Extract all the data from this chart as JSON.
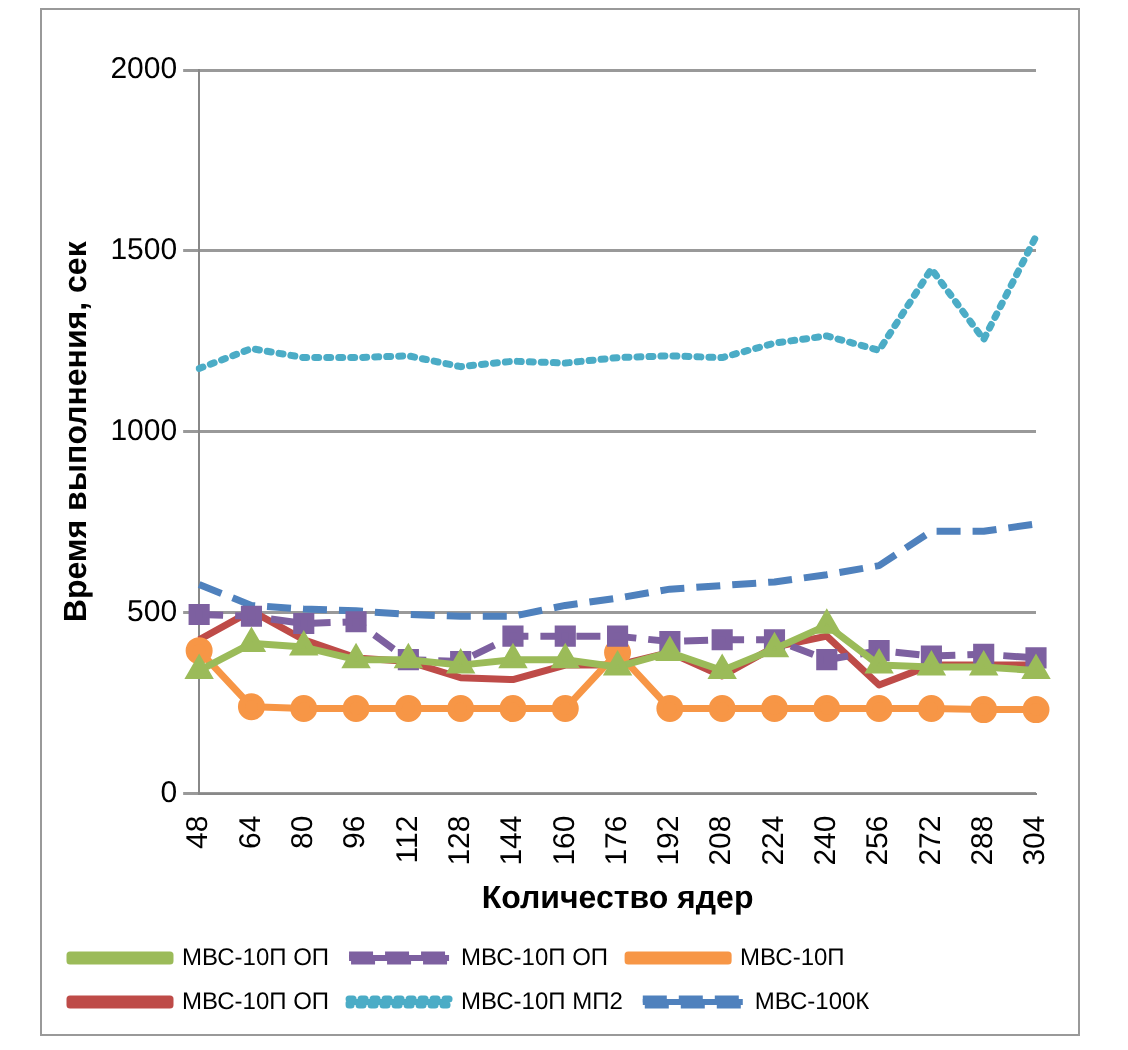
{
  "chart_data": {
    "type": "line",
    "xlabel": "Количество ядер",
    "ylabel": "Время выполнения, сек",
    "categories": [
      "48",
      "64",
      "80",
      "96",
      "112",
      "128",
      "144",
      "160",
      "176",
      "192",
      "208",
      "224",
      "240",
      "256",
      "272",
      "288",
      "304"
    ],
    "ylim": [
      0,
      2000
    ],
    "yticks": [
      0,
      500,
      1000,
      1500,
      2000
    ],
    "grid": "y",
    "legend": "bottom",
    "series": [
      {
        "name": "МВС-10П ОП",
        "color": "#be4b48",
        "marker": "none",
        "line_style": "solid",
        "values": [
          425,
          505,
          425,
          375,
          365,
          320,
          315,
          355,
          355,
          390,
          325,
          405,
          435,
          300,
          355,
          355,
          355
        ]
      },
      {
        "name": "МВС-10П ОП",
        "color": "#9bbb59",
        "marker": "triangle",
        "line_style": "solid",
        "values": [
          340,
          415,
          405,
          370,
          370,
          355,
          370,
          370,
          350,
          390,
          340,
          400,
          465,
          355,
          350,
          350,
          340
        ]
      },
      {
        "name": "МВС-10П ОП",
        "color": "#7d60a0",
        "marker": "square",
        "line_style": "dashed",
        "values": [
          495,
          490,
          470,
          475,
          370,
          365,
          435,
          435,
          435,
          420,
          425,
          425,
          370,
          395,
          380,
          385,
          375
        ]
      },
      {
        "name": "МВС-10П МП2",
        "color": "#4bacc6",
        "marker": "none",
        "line_style": "dotted",
        "values": [
          1175,
          1230,
          1205,
          1205,
          1210,
          1180,
          1195,
          1190,
          1205,
          1210,
          1205,
          1245,
          1265,
          1225,
          1450,
          1255,
          1540
        ]
      },
      {
        "name": "МВС-10П",
        "color": "#f79646",
        "marker": "circle",
        "line_style": "solid",
        "values": [
          395,
          240,
          235,
          235,
          235,
          235,
          235,
          235,
          390,
          235,
          235,
          235,
          235,
          235,
          235,
          232,
          232
        ]
      },
      {
        "name": "МВС-100К",
        "color": "#4f81bd",
        "marker": "none",
        "line_style": "dashed",
        "values": [
          578,
          520,
          510,
          505,
          495,
          490,
          490,
          520,
          540,
          565,
          575,
          585,
          605,
          630,
          725,
          725,
          745
        ]
      }
    ]
  }
}
